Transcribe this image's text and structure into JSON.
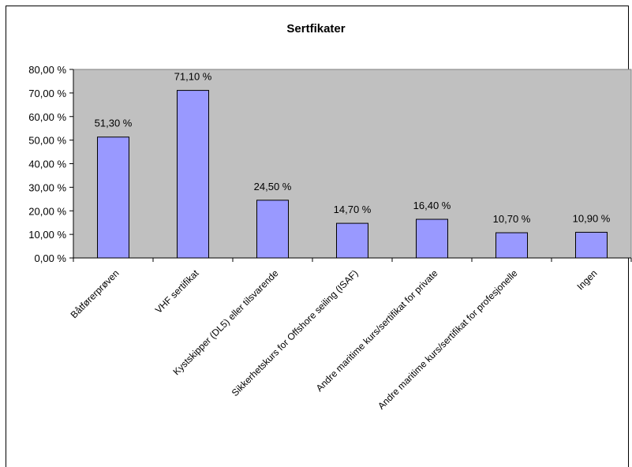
{
  "chart_data": {
    "type": "bar",
    "title": "Sertfikater",
    "categories": [
      "Båtførerprøven",
      "VHF sertifikat",
      "Kystskipper (DL5) eller tilsvarende",
      "Sikkerhetskurs for Offshore seiling (ISAF)",
      "Andre maritime kurs/sertifikat for private",
      "Andre maritime kurs/sertifikat for profesjonelle",
      "Ingen"
    ],
    "values": [
      51.3,
      71.1,
      24.5,
      14.7,
      16.4,
      10.7,
      10.9
    ],
    "data_labels": [
      "51,30 %",
      "71,10 %",
      "24,50 %",
      "14,70 %",
      "16,40 %",
      "10,70 %",
      "10,90 %"
    ],
    "y_ticks": [
      0,
      10,
      20,
      30,
      40,
      50,
      60,
      70,
      80
    ],
    "y_tick_labels": [
      "0,00 %",
      "10,00 %",
      "20,00 %",
      "30,00 %",
      "40,00 %",
      "50,00 %",
      "60,00 %",
      "70,00 %",
      "80,00 %"
    ],
    "ylim": [
      0,
      80
    ],
    "grid": false,
    "legend": "none",
    "colors": {
      "plot_background": "#c0c0c0",
      "bar_fill": "#9999ff",
      "bar_stroke": "#000000",
      "axis": "#000000"
    }
  }
}
